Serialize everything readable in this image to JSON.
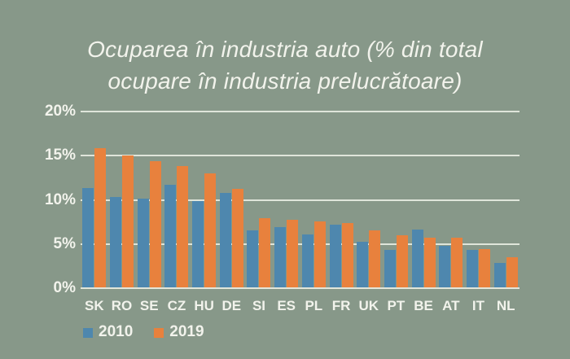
{
  "colors": {
    "background": "#879889",
    "gridline": "#e4e8dc",
    "text": "#f2f3ec",
    "bar_2010": "#4e87ae",
    "bar_2019": "#e8813d"
  },
  "header": {
    "title_line1": "Ocuparea în industria auto (% din total",
    "title_line2": "ocupare în industria prelucrătoare)"
  },
  "chart_data": {
    "type": "bar",
    "title": "Ocuparea în industria auto (% din total ocupare în industria prelucrătoare)",
    "categories": [
      "SK",
      "RO",
      "SE",
      "CZ",
      "HU",
      "DE",
      "SI",
      "ES",
      "PL",
      "FR",
      "UK",
      "PT",
      "BE",
      "AT",
      "IT",
      "NL"
    ],
    "series": [
      {
        "name": "2010",
        "color": "#4e87ae",
        "values": [
          11.3,
          10.3,
          10.1,
          11.7,
          9.9,
          10.8,
          6.5,
          6.9,
          6.1,
          7.2,
          5.3,
          4.3,
          6.6,
          4.8,
          4.3,
          2.9
        ]
      },
      {
        "name": "2019",
        "color": "#e8813d",
        "values": [
          15.9,
          15.0,
          14.4,
          13.8,
          13.0,
          11.2,
          7.9,
          7.7,
          7.6,
          7.4,
          6.5,
          6.0,
          5.7,
          5.7,
          4.4,
          3.5
        ]
      }
    ],
    "xlabel": "",
    "ylabel": "",
    "ylim": [
      0,
      20
    ],
    "yticks": [
      {
        "value": 20,
        "label": "20%"
      },
      {
        "value": 15,
        "label": "15%"
      },
      {
        "value": 10,
        "label": "10%"
      },
      {
        "value": 5,
        "label": "5%"
      },
      {
        "value": 0,
        "label": "0%"
      }
    ],
    "grid": true,
    "legend_position": "bottom-left"
  }
}
